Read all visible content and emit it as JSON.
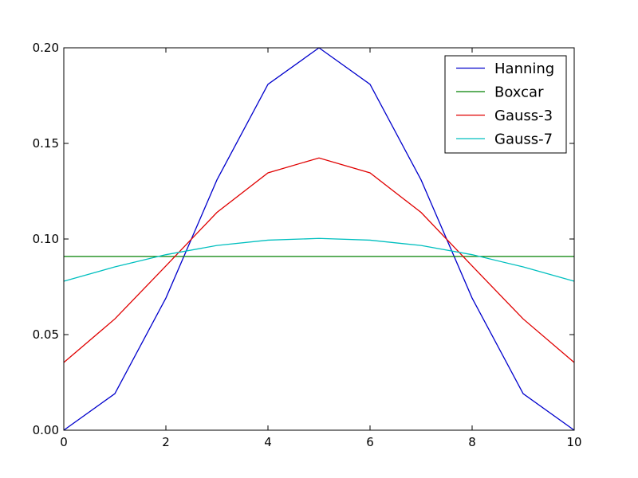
{
  "chart_data": {
    "type": "line",
    "x": [
      0,
      1,
      2,
      3,
      4,
      5,
      6,
      7,
      8,
      9,
      10
    ],
    "xlim": [
      0,
      10
    ],
    "ylim": [
      0,
      0.2
    ],
    "xticks": [
      0,
      2,
      4,
      6,
      8,
      10
    ],
    "xtick_labels": [
      "0",
      "2",
      "4",
      "6",
      "8",
      "10"
    ],
    "yticks": [
      0,
      0.05,
      0.1,
      0.15,
      0.2
    ],
    "ytick_labels": [
      "0.00",
      "0.05",
      "0.10",
      "0.15",
      "0.20"
    ],
    "grid": false,
    "legend": "top-right",
    "series": [
      {
        "name": "Hanning",
        "color": "#0000cc",
        "values": [
          0.0,
          0.0191,
          0.0691,
          0.1309,
          0.1809,
          0.2,
          0.1809,
          0.1309,
          0.0691,
          0.0191,
          0.0
        ]
      },
      {
        "name": "Boxcar",
        "color": "#008000",
        "values": [
          0.0909,
          0.0909,
          0.0909,
          0.0909,
          0.0909,
          0.0909,
          0.0909,
          0.0909,
          0.0909,
          0.0909,
          0.0909
        ]
      },
      {
        "name": "Gauss-3",
        "color": "#e00000",
        "values": [
          0.0354,
          0.0582,
          0.0859,
          0.1139,
          0.1346,
          0.1424,
          0.1346,
          0.1139,
          0.0859,
          0.0582,
          0.0354
        ]
      },
      {
        "name": "Gauss-7",
        "color": "#00bfbf",
        "values": [
          0.0779,
          0.0854,
          0.0918,
          0.0966,
          0.0994,
          0.1003,
          0.0994,
          0.0966,
          0.0918,
          0.0854,
          0.0779
        ]
      }
    ]
  }
}
